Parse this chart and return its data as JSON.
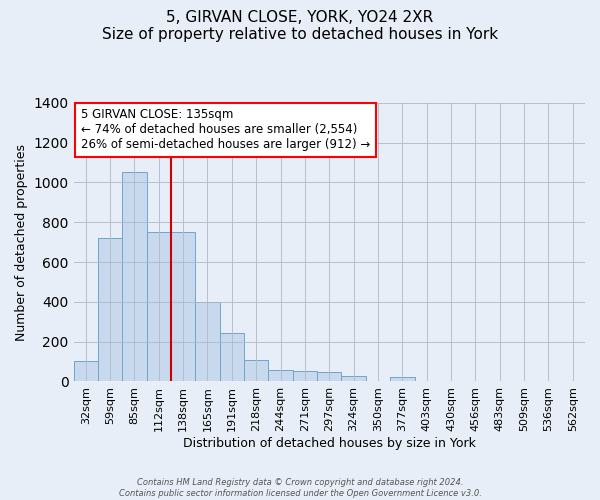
{
  "title": "5, GIRVAN CLOSE, YORK, YO24 2XR",
  "subtitle": "Size of property relative to detached houses in York",
  "xlabel": "Distribution of detached houses by size in York",
  "ylabel": "Number of detached properties",
  "bar_labels": [
    "32sqm",
    "59sqm",
    "85sqm",
    "112sqm",
    "138sqm",
    "165sqm",
    "191sqm",
    "218sqm",
    "244sqm",
    "271sqm",
    "297sqm",
    "324sqm",
    "350sqm",
    "377sqm",
    "403sqm",
    "430sqm",
    "456sqm",
    "483sqm",
    "509sqm",
    "536sqm",
    "562sqm"
  ],
  "bar_values": [
    105,
    720,
    1055,
    750,
    750,
    400,
    245,
    110,
    60,
    55,
    50,
    25,
    0,
    20,
    0,
    0,
    0,
    0,
    0,
    0,
    0
  ],
  "bar_color": "#c8d9ed",
  "bar_edgecolor": "#6ea6cc",
  "vline_index": 4,
  "vline_color": "#cc0000",
  "annotation_title": "5 GIRVAN CLOSE: 135sqm",
  "annotation_line1": "← 74% of detached houses are smaller (2,554)",
  "annotation_line2": "26% of semi-detached houses are larger (912) →",
  "ylim": [
    0,
    1400
  ],
  "yticks": [
    0,
    200,
    400,
    600,
    800,
    1000,
    1200,
    1400
  ],
  "footnote1": "Contains HM Land Registry data © Crown copyright and database right 2024.",
  "footnote2": "Contains public sector information licensed under the Open Government Licence v3.0.",
  "bg_color": "#e8eef7",
  "plot_bg_color": "#e8eef7",
  "title_fontsize": 11,
  "axis_fontsize": 9,
  "tick_fontsize": 8
}
